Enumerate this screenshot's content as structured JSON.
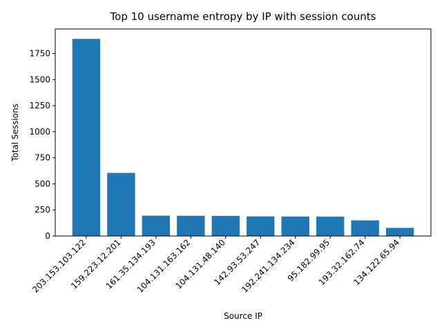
{
  "chart_data": {
    "type": "bar",
    "title": "Top 10 username entropy by IP with session counts",
    "xlabel": "Source IP",
    "ylabel": "Total Sessions",
    "categories": [
      "203.153.103.122",
      "159.223.12.201",
      "161.35.134.193",
      "104.131.163.162",
      "104.131.48.140",
      "142.93.53.247",
      "192.241.134.234",
      "95.182.99.95",
      "193.32.162.74",
      "134.122.65.94"
    ],
    "values": [
      1890,
      605,
      195,
      194,
      193,
      188,
      187,
      186,
      150,
      78
    ],
    "ylim": [
      0,
      1985
    ],
    "yticks": [
      0,
      250,
      500,
      750,
      1000,
      1250,
      1500,
      1750
    ],
    "grid": false,
    "bar_color": "#1f77b4"
  }
}
